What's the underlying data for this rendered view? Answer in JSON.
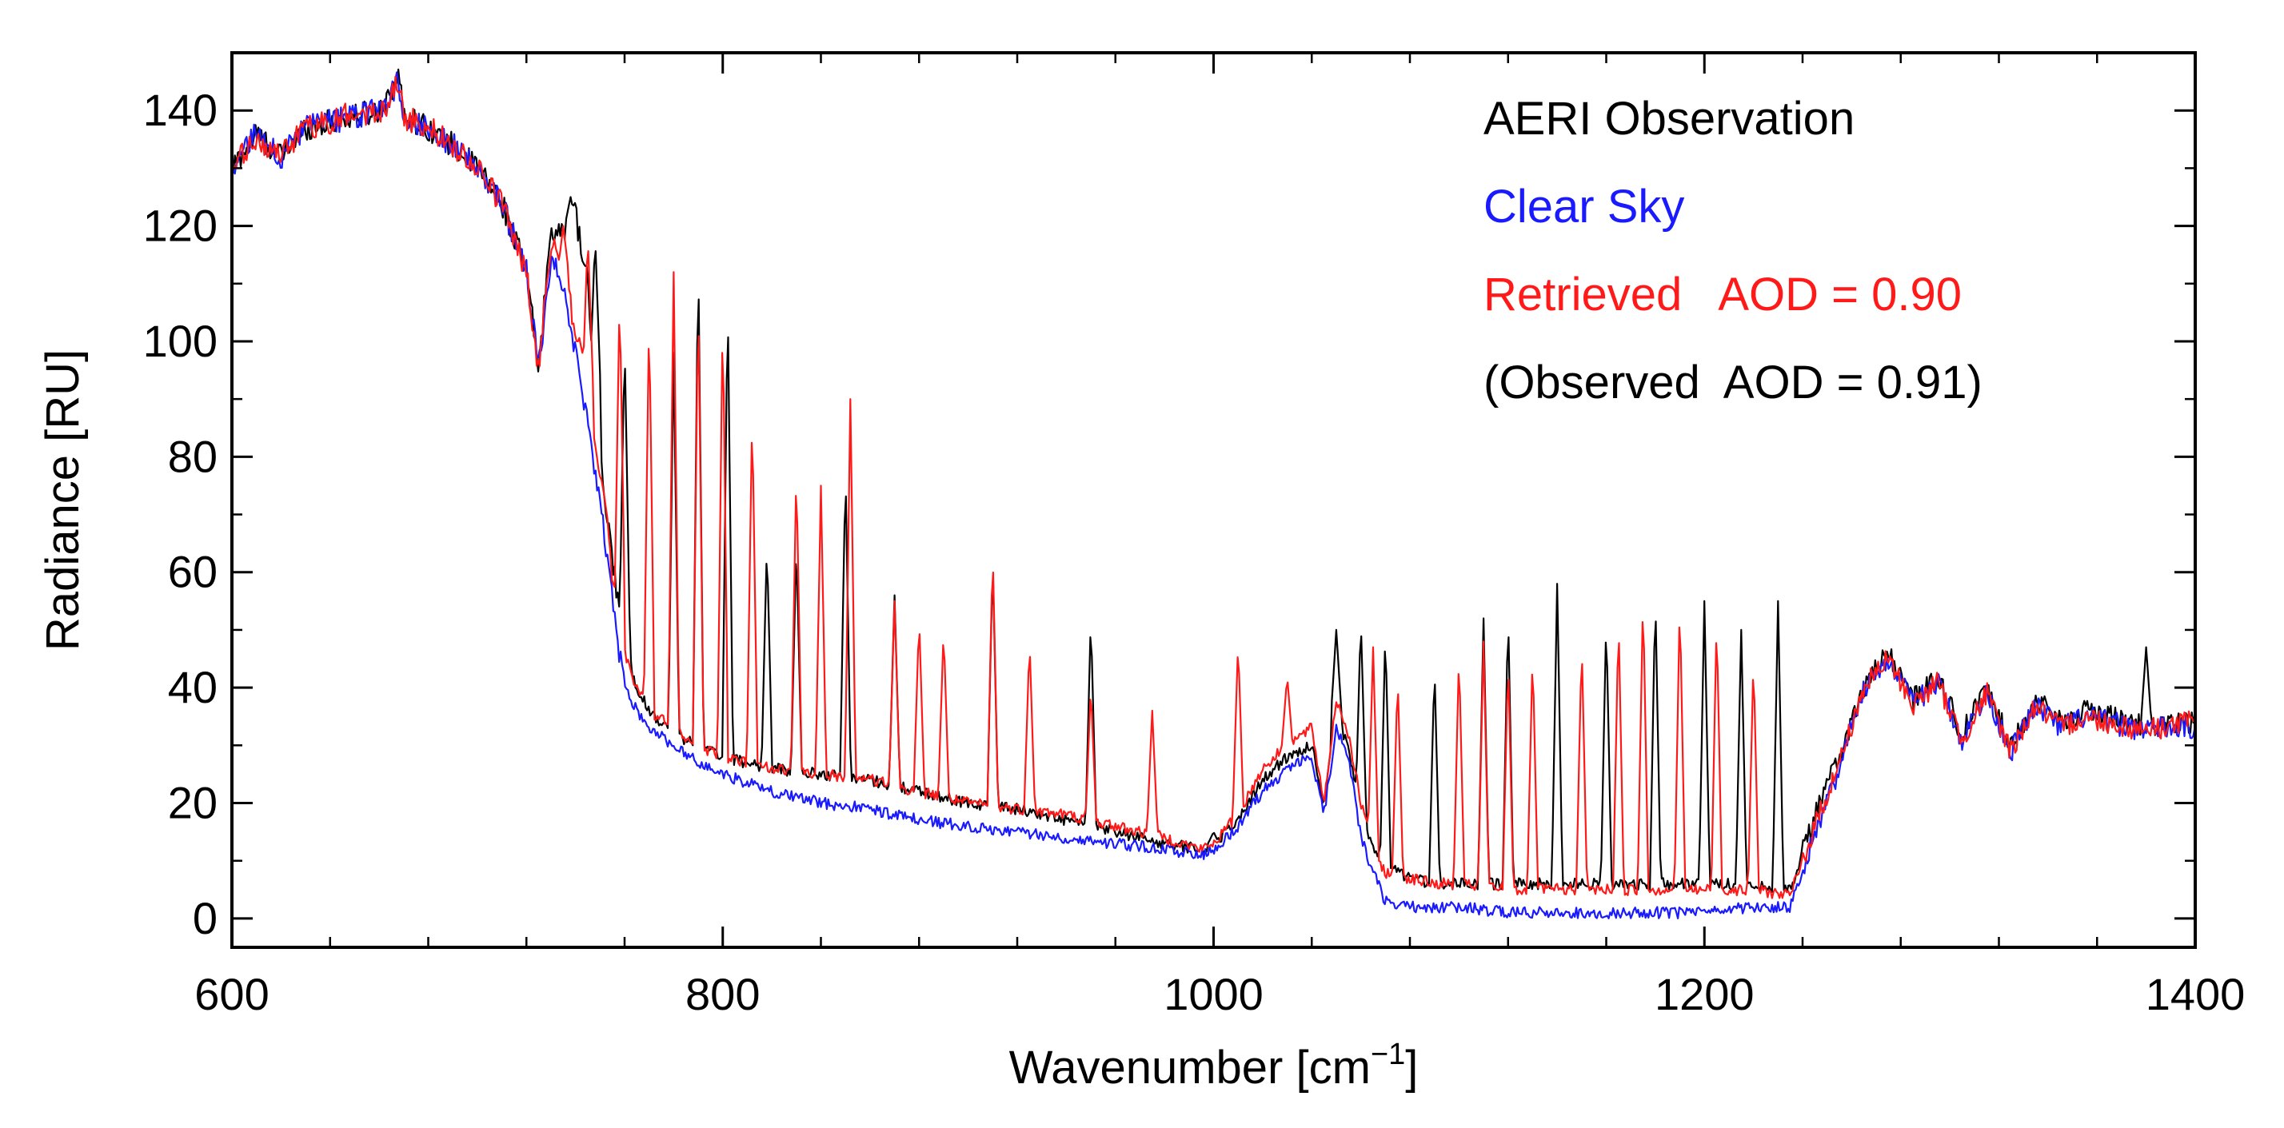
{
  "chart_data": {
    "type": "line",
    "title": "",
    "xlabel": "Wavenumber [cm",
    "xlabel_sup": "−1",
    "xlabel_close": "]",
    "ylabel": "Radiance [RU]",
    "xlim": [
      600,
      1400
    ],
    "ylim": [
      -5,
      150
    ],
    "x_ticks": [
      600,
      800,
      1000,
      1200,
      1400
    ],
    "x_tick_labels": [
      "600",
      "800",
      "1000",
      "1200",
      "1400"
    ],
    "y_ticks": [
      0,
      20,
      40,
      60,
      80,
      100,
      120,
      140
    ],
    "y_tick_labels": [
      "0",
      "20",
      "40",
      "60",
      "80",
      "100",
      "120",
      "140"
    ],
    "grid": false,
    "legend": {
      "placement": "top-right",
      "entries": [
        {
          "text": "AERI Observation",
          "color": "#000000"
        },
        {
          "text": "Clear Sky",
          "color": "#1a1aff"
        },
        {
          "text": "Retrieved   AOD = 0.90",
          "color": "#ff1a1a"
        },
        {
          "text": "(Observed  AOD = 0.91)",
          "color": "#000000"
        }
      ]
    },
    "series": [
      {
        "name": "AERI Observation",
        "color": "#000000",
        "x": [
          600,
          610,
          620,
          630,
          640,
          650,
          660,
          668,
          670,
          680,
          690,
          700,
          710,
          720,
          725,
          730,
          735,
          740,
          745,
          750,
          755,
          760,
          765,
          770,
          780,
          790,
          800,
          820,
          840,
          860,
          880,
          900,
          920,
          940,
          960,
          980,
          995,
          1000,
          1010,
          1020,
          1030,
          1040,
          1045,
          1050,
          1055,
          1060,
          1065,
          1070,
          1080,
          1090,
          1100,
          1120,
          1140,
          1160,
          1180,
          1200,
          1220,
          1235,
          1245,
          1255,
          1265,
          1275,
          1285,
          1295,
          1305,
          1315,
          1325,
          1335,
          1345,
          1355,
          1365,
          1375,
          1385,
          1395,
          1400
        ],
        "y": [
          130,
          136,
          132,
          137,
          138,
          139,
          140,
          146,
          139,
          137,
          134,
          130,
          124,
          112,
          95,
          120,
          118,
          122,
          110,
          80,
          62,
          48,
          40,
          36,
          32,
          30,
          28,
          26,
          25,
          24,
          22,
          20,
          19,
          17,
          15,
          13,
          12,
          13,
          17,
          24,
          28,
          30,
          20,
          35,
          30,
          18,
          12,
          9,
          7,
          6,
          6,
          6,
          6,
          6,
          6,
          6,
          6,
          5,
          18,
          28,
          40,
          46,
          38,
          42,
          32,
          40,
          30,
          38,
          34,
          36,
          35,
          34,
          33,
          34,
          34
        ],
        "spikes": [
          [
            738,
            125
          ],
          [
            748,
            118
          ],
          [
            760,
            100
          ],
          [
            780,
            98
          ],
          [
            790,
            115
          ],
          [
            802,
            108
          ],
          [
            818,
            65
          ],
          [
            830,
            65
          ],
          [
            850,
            78
          ],
          [
            870,
            56
          ],
          [
            910,
            62
          ],
          [
            950,
            52
          ],
          [
            1000,
            15
          ],
          [
            1050,
            50
          ],
          [
            1060,
            52
          ],
          [
            1070,
            50
          ],
          [
            1090,
            44
          ],
          [
            1110,
            52
          ],
          [
            1120,
            53
          ],
          [
            1140,
            58
          ],
          [
            1160,
            52
          ],
          [
            1180,
            56
          ],
          [
            1200,
            55
          ],
          [
            1215,
            50
          ],
          [
            1230,
            55
          ],
          [
            1380,
            47
          ]
        ]
      },
      {
        "name": "Clear Sky",
        "color": "#1a1aff",
        "x": [
          600,
          610,
          620,
          630,
          640,
          650,
          660,
          668,
          670,
          680,
          690,
          700,
          710,
          720,
          725,
          730,
          735,
          740,
          745,
          750,
          755,
          760,
          765,
          770,
          780,
          790,
          800,
          820,
          840,
          860,
          880,
          900,
          920,
          940,
          960,
          980,
          995,
          1000,
          1010,
          1020,
          1030,
          1040,
          1045,
          1050,
          1055,
          1060,
          1065,
          1070,
          1080,
          1090,
          1100,
          1120,
          1140,
          1160,
          1180,
          1200,
          1220,
          1235,
          1245,
          1255,
          1265,
          1275,
          1285,
          1295,
          1305,
          1315,
          1325,
          1335,
          1345,
          1355,
          1365,
          1375,
          1385,
          1395,
          1400
        ],
        "y": [
          130,
          136,
          132,
          137,
          138,
          139,
          140,
          145,
          139,
          137,
          134,
          130,
          124,
          112,
          95,
          115,
          110,
          98,
          85,
          72,
          55,
          40,
          36,
          33,
          30,
          27,
          25,
          22,
          20,
          19,
          17,
          16,
          15,
          14,
          13,
          12,
          11,
          12,
          16,
          22,
          26,
          28,
          18,
          33,
          28,
          14,
          8,
          3,
          2,
          2,
          2,
          1,
          1,
          1,
          1,
          1,
          2,
          2,
          15,
          26,
          40,
          45,
          37,
          41,
          31,
          39,
          29,
          37,
          33,
          35,
          34,
          33,
          33,
          33,
          33
        ],
        "spikes": []
      },
      {
        "name": "Retrieved AOD = 0.90",
        "color": "#ff1a1a",
        "x": [
          600,
          610,
          620,
          630,
          640,
          650,
          660,
          668,
          670,
          680,
          690,
          700,
          710,
          720,
          725,
          730,
          735,
          740,
          745,
          750,
          755,
          760,
          765,
          770,
          780,
          790,
          800,
          820,
          840,
          860,
          880,
          900,
          920,
          940,
          960,
          980,
          995,
          1000,
          1010,
          1020,
          1030,
          1040,
          1045,
          1050,
          1055,
          1060,
          1065,
          1070,
          1080,
          1090,
          1100,
          1120,
          1140,
          1160,
          1180,
          1200,
          1220,
          1235,
          1245,
          1255,
          1265,
          1275,
          1285,
          1295,
          1305,
          1315,
          1325,
          1335,
          1345,
          1355,
          1365,
          1375,
          1385,
          1395,
          1400
        ],
        "y": [
          130,
          135,
          132,
          137,
          138,
          140,
          139,
          145,
          139,
          137,
          134,
          130,
          124,
          112,
          95,
          118,
          112,
          102,
          92,
          78,
          60,
          46,
          40,
          36,
          33,
          30,
          28,
          26,
          25,
          24,
          22,
          20,
          19,
          18,
          16,
          14,
          12,
          13,
          18,
          26,
          30,
          33,
          20,
          38,
          32,
          20,
          12,
          8,
          7,
          6,
          6,
          5,
          5,
          5,
          5,
          5,
          5,
          4,
          16,
          27,
          40,
          45,
          37,
          41,
          31,
          39,
          29,
          37,
          33,
          35,
          34,
          33,
          33,
          34,
          34
        ],
        "spikes": [
          [
            735,
            120
          ],
          [
            745,
            118
          ],
          [
            758,
            108
          ],
          [
            770,
            105
          ],
          [
            780,
            112
          ],
          [
            790,
            108
          ],
          [
            800,
            105
          ],
          [
            812,
            88
          ],
          [
            830,
            78
          ],
          [
            840,
            75
          ],
          [
            852,
            90
          ],
          [
            870,
            55
          ],
          [
            880,
            52
          ],
          [
            890,
            50
          ],
          [
            910,
            64
          ],
          [
            925,
            48
          ],
          [
            950,
            40
          ],
          [
            975,
            36
          ],
          [
            1010,
            48
          ],
          [
            1030,
            42
          ],
          [
            1065,
            47
          ],
          [
            1075,
            42
          ],
          [
            1100,
            46
          ],
          [
            1110,
            48
          ],
          [
            1120,
            45
          ],
          [
            1130,
            46
          ],
          [
            1150,
            48
          ],
          [
            1165,
            52
          ],
          [
            1175,
            56
          ],
          [
            1190,
            55
          ],
          [
            1205,
            52
          ],
          [
            1220,
            45
          ]
        ]
      }
    ]
  }
}
